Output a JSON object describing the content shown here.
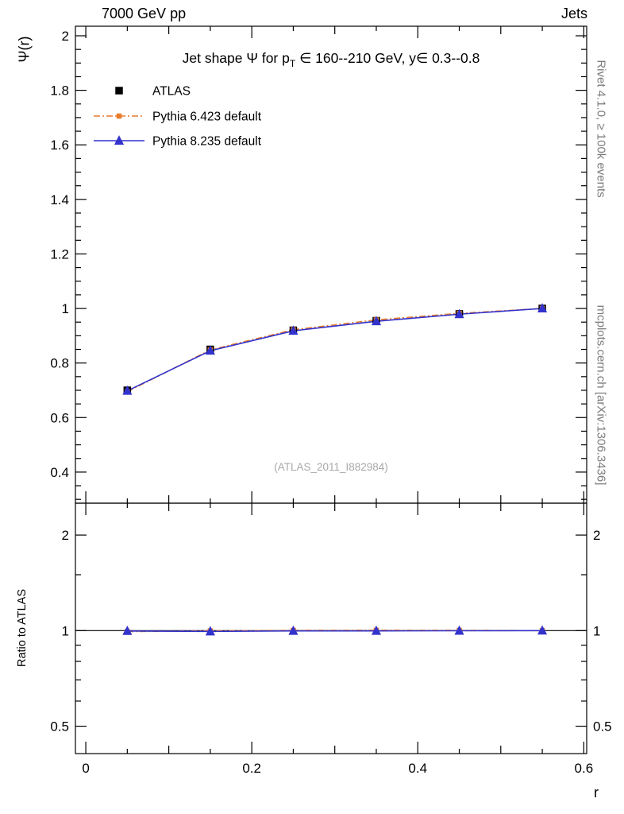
{
  "header": {
    "left": "7000 GeV pp",
    "right": "Jets"
  },
  "side": {
    "top": "Rivet 4.1.0, ≥ 100k events",
    "bottom": "mcplots.cern.ch [arXiv:1306.3436]"
  },
  "axes": {
    "main_y_label": "Ψ(r)",
    "ratio_y_label": "Ratio to ATLAS",
    "x_label": "r"
  },
  "main": {
    "watermark": "(ATLAS_2011_I882984)"
  },
  "colors": {
    "frame": "#000000",
    "atlas": "#000000",
    "pythia6": "#e87c2b",
    "pythia8": "#3232cd",
    "caption_gray": "#7c7c7c",
    "watermark_gray": "#a8a8a8"
  },
  "chart_data": {
    "type": "line",
    "title": "Jet shape Ψ for p_T ∈ 160--210 GeV, y∈ 0.3--0.8",
    "title_parts": [
      {
        "text": "Jet shape Ψ for p"
      },
      {
        "text": "T",
        "sub": true
      },
      {
        "text": " ∈ 160--210 GeV, y∈ 0.3--0.8"
      }
    ],
    "x": [
      0.05,
      0.15,
      0.25,
      0.35,
      0.45,
      0.55
    ],
    "series": [
      {
        "name": "ATLAS",
        "color": "#000000",
        "marker": "square",
        "marker_size": 9.5,
        "line": "none",
        "values": [
          0.7,
          0.85,
          0.92,
          0.955,
          0.98,
          1.0
        ],
        "ratio": null
      },
      {
        "name": "Pythia 6.423 default",
        "color": "#e87c2b",
        "marker": "square",
        "marker_size": 6.5,
        "line": "dashdot",
        "values": [
          0.695,
          0.848,
          0.922,
          0.958,
          0.982,
          1.0
        ],
        "ratio": [
          0.993,
          0.998,
          1.002,
          1.003,
          1.002,
          1.0
        ]
      },
      {
        "name": "Pythia 8.235 default",
        "color": "#3232cd",
        "marker": "triangle",
        "marker_size": 11,
        "line": "solid",
        "values": [
          0.698,
          0.845,
          0.918,
          0.953,
          0.979,
          1.0
        ],
        "ratio": [
          0.997,
          0.994,
          0.998,
          0.998,
          0.999,
          1.0
        ]
      }
    ],
    "x_axis": {
      "label": "r",
      "range": [
        -0.0125,
        0.6035
      ],
      "major_ticks": [
        0,
        0.2,
        0.4,
        0.6
      ],
      "medium_step": 0.1,
      "minor_step": 0.05
    },
    "main_axis": {
      "label": "Ψ(r)",
      "scale": "linear",
      "range": [
        0.286,
        2.035
      ],
      "major_ticks": [
        0.4,
        0.6,
        0.8,
        1,
        1.2,
        1.4,
        1.6,
        1.8,
        2
      ],
      "minor_step": 0.05
    },
    "ratio_axis": {
      "label": "Ratio to ATLAS",
      "scale": "log",
      "range": [
        0.41,
        2.52
      ],
      "major_ticks": [
        0.5,
        1,
        2
      ],
      "minor_ticks": [
        0.6,
        0.7,
        0.8,
        0.9,
        1.5
      ],
      "reference_line": 1
    },
    "legend_position": "top-left",
    "grid": false
  }
}
